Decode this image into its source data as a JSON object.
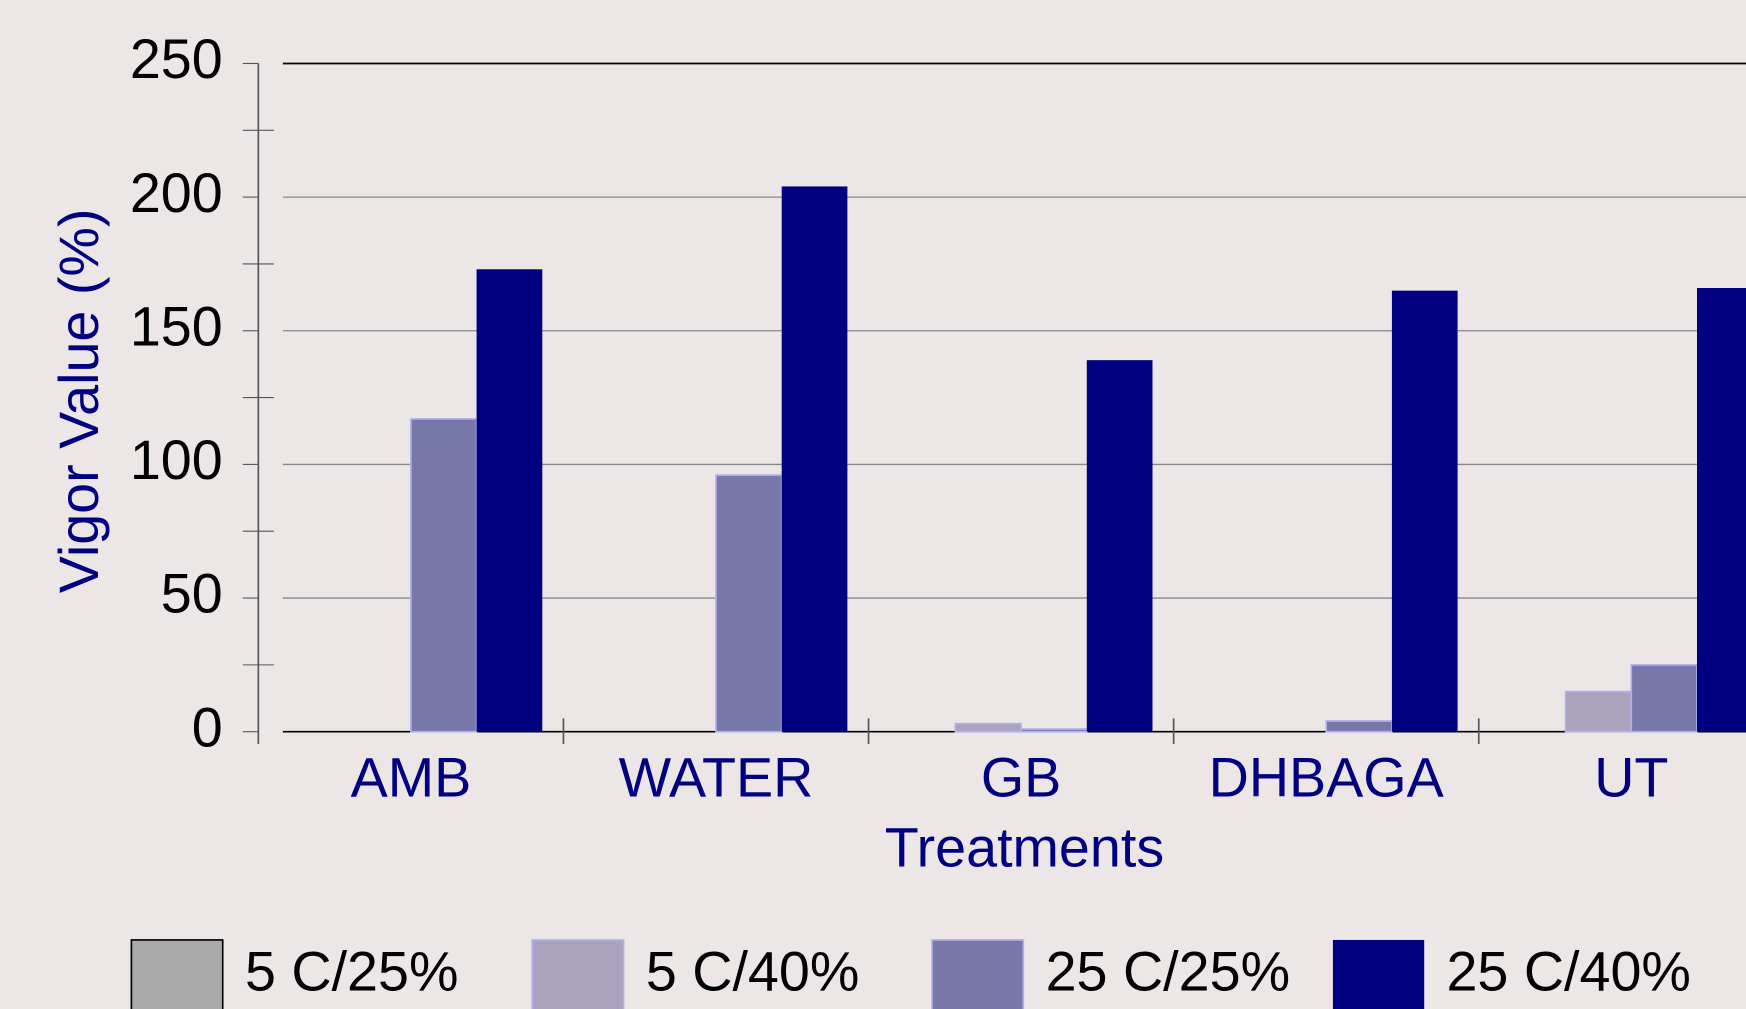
{
  "chart_data": {
    "type": "bar",
    "xlabel": "Treatments",
    "ylabel": "Vigor Value (%)",
    "categories": [
      "AMB",
      "WATER",
      "GB",
      "DHBAGA",
      "UT"
    ],
    "series": [
      {
        "name": "5 C/25%",
        "color": "#aaaaaa",
        "values": [
          0,
          0,
          0,
          0,
          0
        ]
      },
      {
        "name": "5 C/40%",
        "color": "#aba3bd",
        "values": [
          0,
          0,
          3,
          0,
          15
        ]
      },
      {
        "name": "25 C/25%",
        "color": "#7777aa",
        "values": [
          117,
          96,
          1,
          4,
          25
        ]
      },
      {
        "name": "25 C/40%",
        "color": "#000080",
        "values": [
          173,
          204,
          139,
          165,
          166
        ]
      }
    ],
    "ylim": [
      0,
      250
    ],
    "yticks": [
      0,
      50,
      100,
      150,
      200,
      250
    ],
    "grid": true,
    "legend": "bottom"
  }
}
